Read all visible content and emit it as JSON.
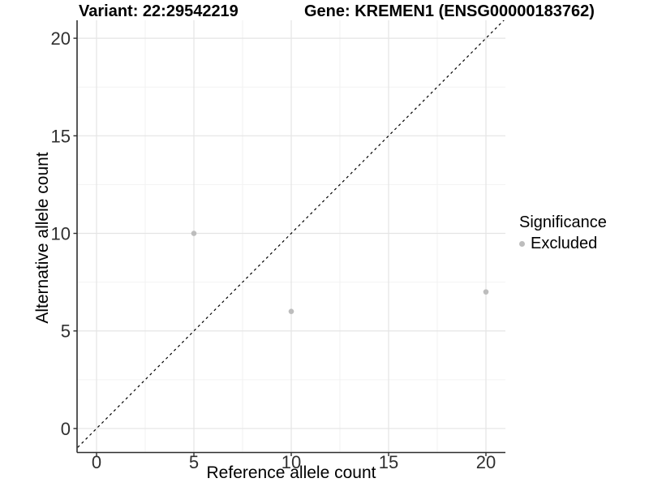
{
  "chart_data": {
    "type": "scatter",
    "titles": [
      "Variant: 22:29542219",
      "Gene: KREMEN1 (ENSG00000183762)"
    ],
    "xlabel": "Reference allele count",
    "ylabel": "Alternative allele count",
    "xlim": [
      -1,
      21
    ],
    "ylim": [
      -1.23,
      20.92
    ],
    "xticks": [
      0,
      5,
      10,
      15,
      20
    ],
    "yticks": [
      0,
      5,
      10,
      15,
      20
    ],
    "minor_ticks_x": [
      2.5,
      7.5,
      12.5,
      17.5
    ],
    "minor_ticks_y": [
      2.5,
      7.5,
      12.5,
      17.5
    ],
    "grid": true,
    "identity_line": {
      "slope": 1,
      "intercept": 0,
      "style": "dashed",
      "color": "#000000"
    },
    "series": [
      {
        "name": "Excluded",
        "color": "#bdbdbd",
        "points": [
          {
            "x": 5,
            "y": 10
          },
          {
            "x": 10,
            "y": 6
          },
          {
            "x": 20,
            "y": 7
          }
        ]
      }
    ],
    "legend": {
      "title": "Significance",
      "position": "right",
      "items": [
        {
          "label": "Excluded",
          "color": "#bdbdbd"
        }
      ]
    },
    "colors": {
      "background": "#ffffff",
      "major_grid": "#e4e4e4",
      "minor_grid": "#f2f2f2",
      "axis_line": "#2e2e2e",
      "tick_mark": "#2e2e2e",
      "tick_text": "#303030",
      "point": "#bdbdbd"
    }
  }
}
